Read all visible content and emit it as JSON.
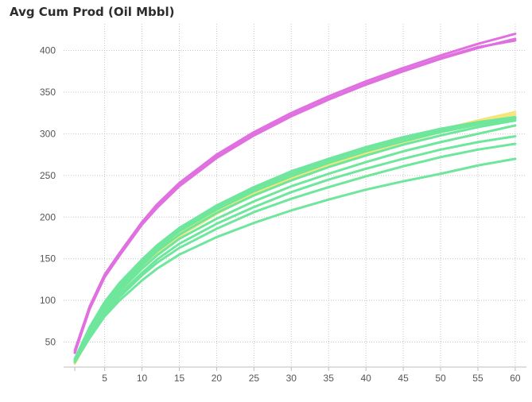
{
  "chart_data": {
    "type": "line",
    "title": "Avg Cum Prod (Oil Mbbl)",
    "xlabel": "",
    "ylabel": "",
    "xlim": [
      -0.5,
      61.5
    ],
    "ylim": [
      20,
      432
    ],
    "x_ticks": [
      5,
      10,
      15,
      20,
      25,
      30,
      35,
      40,
      45,
      50,
      55,
      60
    ],
    "y_ticks": [
      50,
      100,
      150,
      200,
      250,
      300,
      350,
      400
    ],
    "grid": true,
    "legend": "none",
    "x": [
      1,
      3,
      5,
      7,
      10,
      12,
      15,
      20,
      25,
      30,
      35,
      40,
      45,
      50,
      55,
      60
    ],
    "series": [
      {
        "color": "#e070e0",
        "values": [
          40,
          93,
          131,
          157,
          194,
          215,
          241,
          275,
          302,
          325,
          345,
          363,
          379,
          394,
          408,
          420
        ]
      },
      {
        "color": "#e070e0",
        "values": [
          37,
          90,
          128,
          154,
          191,
          211,
          237,
          271,
          298,
          321,
          341,
          359,
          375,
          390,
          403,
          414
        ]
      },
      {
        "color": "#e070e0",
        "values": [
          38,
          91,
          129,
          155,
          192,
          212,
          238,
          272,
          299,
          322,
          342,
          360,
          376,
          391,
          404,
          412
        ]
      },
      {
        "color": "#f5e47a",
        "values": [
          26,
          60,
          90,
          114,
          143,
          160,
          181,
          209,
          231,
          250,
          266,
          281,
          294,
          305,
          316,
          326
        ]
      },
      {
        "color": "#f5e47a",
        "values": [
          24,
          57,
          87,
          110,
          139,
          156,
          177,
          204,
          227,
          246,
          262,
          277,
          290,
          302,
          313,
          323
        ]
      },
      {
        "color": "#f5e47a",
        "values": [
          25,
          58,
          88,
          112,
          141,
          158,
          179,
          206,
          229,
          248,
          264,
          279,
          292,
          303,
          314,
          320
        ]
      },
      {
        "color": "#6ee69c",
        "values": [
          30,
          68,
          98,
          121,
          149,
          166,
          187,
          214,
          236,
          255,
          270,
          284,
          296,
          306,
          314,
          320
        ]
      },
      {
        "color": "#6ee69c",
        "values": [
          29,
          66,
          96,
          119,
          147,
          164,
          185,
          212,
          234,
          252,
          268,
          282,
          294,
          304,
          313,
          319
        ]
      },
      {
        "color": "#6ee69c",
        "values": [
          28,
          64,
          94,
          117,
          145,
          162,
          183,
          209,
          231,
          249,
          265,
          279,
          291,
          302,
          311,
          318
        ]
      },
      {
        "color": "#6ee69c",
        "values": [
          27,
          62,
          91,
          114,
          142,
          159,
          179,
          205,
          226,
          244,
          260,
          274,
          287,
          298,
          308,
          316
        ]
      },
      {
        "color": "#6ee69c",
        "values": [
          27,
          60,
          89,
          111,
          138,
          154,
          174,
          198,
          219,
          237,
          252,
          266,
          279,
          290,
          300,
          310
        ]
      },
      {
        "color": "#6ee69c",
        "values": [
          26,
          58,
          86,
          107,
          133,
          149,
          168,
          192,
          212,
          230,
          245,
          258,
          270,
          281,
          290,
          297
        ]
      },
      {
        "color": "#6ee69c",
        "values": [
          26,
          57,
          84,
          104,
          130,
          145,
          163,
          186,
          206,
          222,
          236,
          249,
          261,
          272,
          281,
          288
        ]
      },
      {
        "color": "#6ee69c",
        "values": [
          26,
          55,
          81,
          100,
          124,
          138,
          155,
          176,
          193,
          208,
          221,
          233,
          243,
          252,
          262,
          270
        ]
      }
    ]
  }
}
